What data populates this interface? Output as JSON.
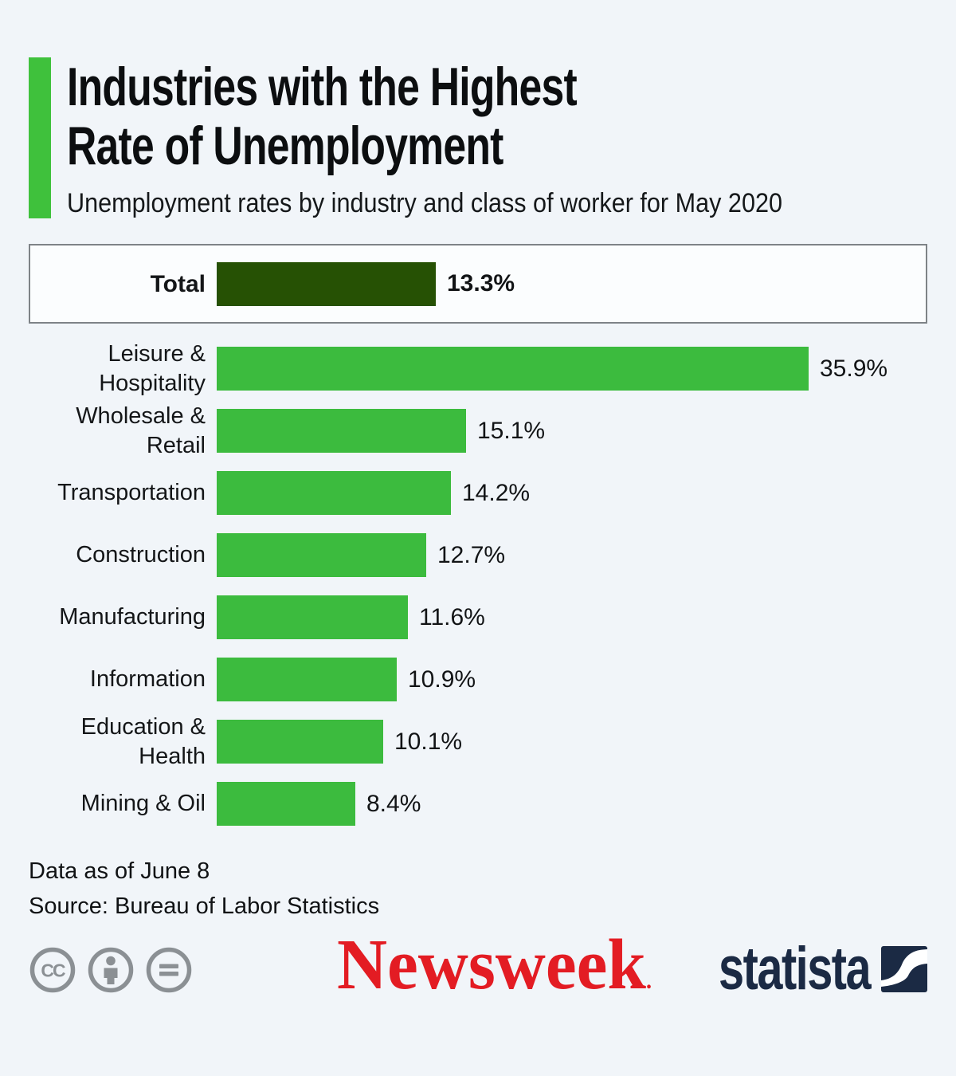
{
  "header": {
    "title_line1": "Industries with the Highest",
    "title_line2": "Rate of Unemployment",
    "subtitle": "Unemployment rates by industry and class of worker for May 2020"
  },
  "chart_data": {
    "type": "bar",
    "orientation": "horizontal",
    "title": "Industries with the Highest Rate of Unemployment",
    "subtitle": "Unemployment rates by industry and class of worker for May 2020",
    "unit": "percent",
    "value_axis_visible": false,
    "total": {
      "label": "Total",
      "value": 13.3,
      "display": "13.3%"
    },
    "categories": [
      "Leisure & Hospitality",
      "Wholesale & Retail",
      "Transportation",
      "Construction",
      "Manufacturing",
      "Information",
      "Education & Health",
      "Mining & Oil"
    ],
    "values": [
      35.9,
      15.1,
      14.2,
      12.7,
      11.6,
      10.9,
      10.1,
      8.4
    ],
    "rows": [
      {
        "label": "Leisure & Hospitality",
        "label_lines": [
          "Leisure &",
          "Hospitality"
        ],
        "value": 35.9,
        "display": "35.9%"
      },
      {
        "label": "Wholesale & Retail",
        "label_lines": [
          "Wholesale &",
          "Retail"
        ],
        "value": 15.1,
        "display": "15.1%"
      },
      {
        "label": "Transportation",
        "label_lines": [
          "Transportation"
        ],
        "value": 14.2,
        "display": "14.2%"
      },
      {
        "label": "Construction",
        "label_lines": [
          "Construction"
        ],
        "value": 12.7,
        "display": "12.7%"
      },
      {
        "label": "Manufacturing",
        "label_lines": [
          "Manufacturing"
        ],
        "value": 11.6,
        "display": "11.6%"
      },
      {
        "label": "Information",
        "label_lines": [
          "Information"
        ],
        "value": 10.9,
        "display": "10.9%"
      },
      {
        "label": "Education & Health",
        "label_lines": [
          "Education &",
          "Health"
        ],
        "value": 10.1,
        "display": "10.1%"
      },
      {
        "label": "Mining & Oil",
        "label_lines": [
          "Mining & Oil"
        ],
        "value": 8.4,
        "display": "8.4%"
      }
    ],
    "colors": {
      "bar": "#3cbb3e",
      "total_bar": "#265104",
      "accent": "#3fc13c",
      "background": "#f1f5f9"
    }
  },
  "footer": {
    "note": "Data as of June 8",
    "source": "Source: Bureau of Labor Statistics"
  },
  "branding": {
    "newsweek_wordmark": "Newsweek",
    "newsweek_mark": ".",
    "newsweek_color": "#e31c23",
    "statista_wordmark": "statista",
    "statista_color": "#1b2a44",
    "cc_icons": [
      "cc-icon",
      "attribution-person-icon",
      "equals-icon"
    ],
    "cc_color": "#8b9094"
  }
}
